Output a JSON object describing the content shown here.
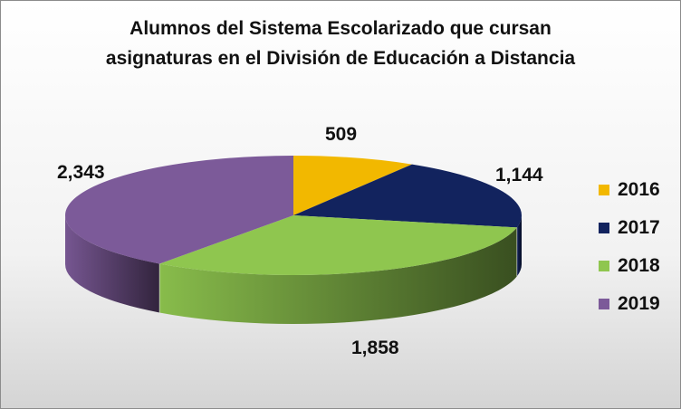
{
  "chart_data": {
    "type": "pie",
    "title_lines": [
      "Alumnos del Sistema Escolarizado que cursan",
      "asignaturas en el División de Educación  a Distancia"
    ],
    "categories": [
      "2016",
      "2017",
      "2018",
      "2019"
    ],
    "values": [
      509,
      1144,
      1858,
      2343
    ],
    "value_labels": [
      "509",
      "1,144",
      "1,858",
      "2,343"
    ],
    "colors": [
      "#f2b800",
      "#12235e",
      "#8fc64f",
      "#7c5a99"
    ],
    "legend_position": "right",
    "three_d": true
  }
}
